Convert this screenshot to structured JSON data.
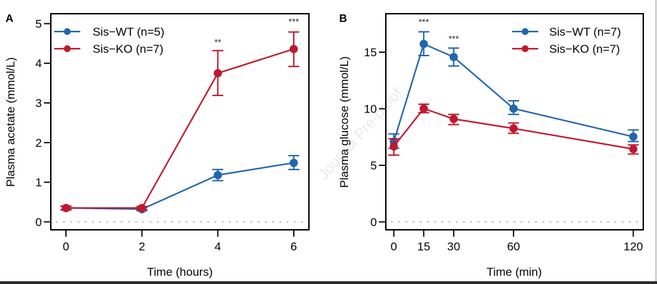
{
  "watermark": "Journal Pre-proof",
  "colors": {
    "wt": "#2166ac",
    "ko": "#c0182f",
    "axis": "#000000",
    "zero_line": "#b0b0b0"
  },
  "chart_data": [
    {
      "panel_label": "A",
      "type": "line",
      "xlabel": "Time (hours)",
      "ylabel": "Plasma acetate (mmol/L)",
      "x": [
        0,
        2,
        4,
        6
      ],
      "xticks": [
        0,
        2,
        4,
        6
      ],
      "xlim": [
        -0.4,
        6.4
      ],
      "yticks": [
        0,
        1,
        2,
        3,
        4,
        5
      ],
      "ylim": [
        -0.2,
        5.25
      ],
      "zero_reference_line": true,
      "legend_position": "top-left",
      "series": [
        {
          "name": "Sis−WT (n=5)",
          "color": "#2166ac",
          "values": [
            0.35,
            0.32,
            1.18,
            1.49
          ],
          "error_upper": [
            0.39,
            0.36,
            1.32,
            1.67
          ],
          "error_lower": [
            0.31,
            0.28,
            1.04,
            1.32
          ]
        },
        {
          "name": "Sis−KO (n=7)",
          "color": "#c0182f",
          "values": [
            0.35,
            0.35,
            3.75,
            4.36
          ],
          "error_upper": [
            0.4,
            0.39,
            4.32,
            4.79
          ],
          "error_lower": [
            0.3,
            0.31,
            3.19,
            3.92
          ]
        }
      ],
      "annotations": [
        {
          "x": 4,
          "y": 4.45,
          "text": "**"
        },
        {
          "x": 6,
          "y": 4.97,
          "text": "***"
        }
      ]
    },
    {
      "panel_label": "B",
      "type": "line",
      "xlabel": "Time (min)",
      "ylabel": "Plasma glucose (mmol/L)",
      "x": [
        0,
        15,
        30,
        60,
        120
      ],
      "xticks": [
        0,
        15,
        30,
        60,
        120
      ],
      "xlim": [
        -4,
        125
      ],
      "yticks": [
        0,
        5,
        10,
        15
      ],
      "ylim": [
        -0.7,
        18.4
      ],
      "zero_reference_line": true,
      "legend_position": "top-right",
      "series": [
        {
          "name": "Sis−WT (n=7)",
          "color": "#2166ac",
          "values": [
            7.1,
            15.73,
            14.57,
            10.02,
            7.53
          ],
          "error_upper": [
            7.77,
            16.8,
            15.36,
            10.7,
            8.13
          ],
          "error_lower": [
            6.5,
            14.7,
            13.78,
            9.5,
            7.1
          ]
        },
        {
          "name": "Sis−KO (n=7)",
          "color": "#c0182f",
          "values": [
            6.67,
            10.02,
            9.1,
            8.26,
            6.44
          ],
          "error_upper": [
            7.35,
            10.4,
            9.5,
            8.74,
            6.8
          ],
          "error_lower": [
            5.9,
            9.65,
            8.6,
            7.83,
            6.0
          ]
        }
      ],
      "annotations": [
        {
          "x": 15,
          "y": 17.4,
          "text": "***"
        },
        {
          "x": 30,
          "y": 15.9,
          "text": "***"
        }
      ]
    }
  ]
}
